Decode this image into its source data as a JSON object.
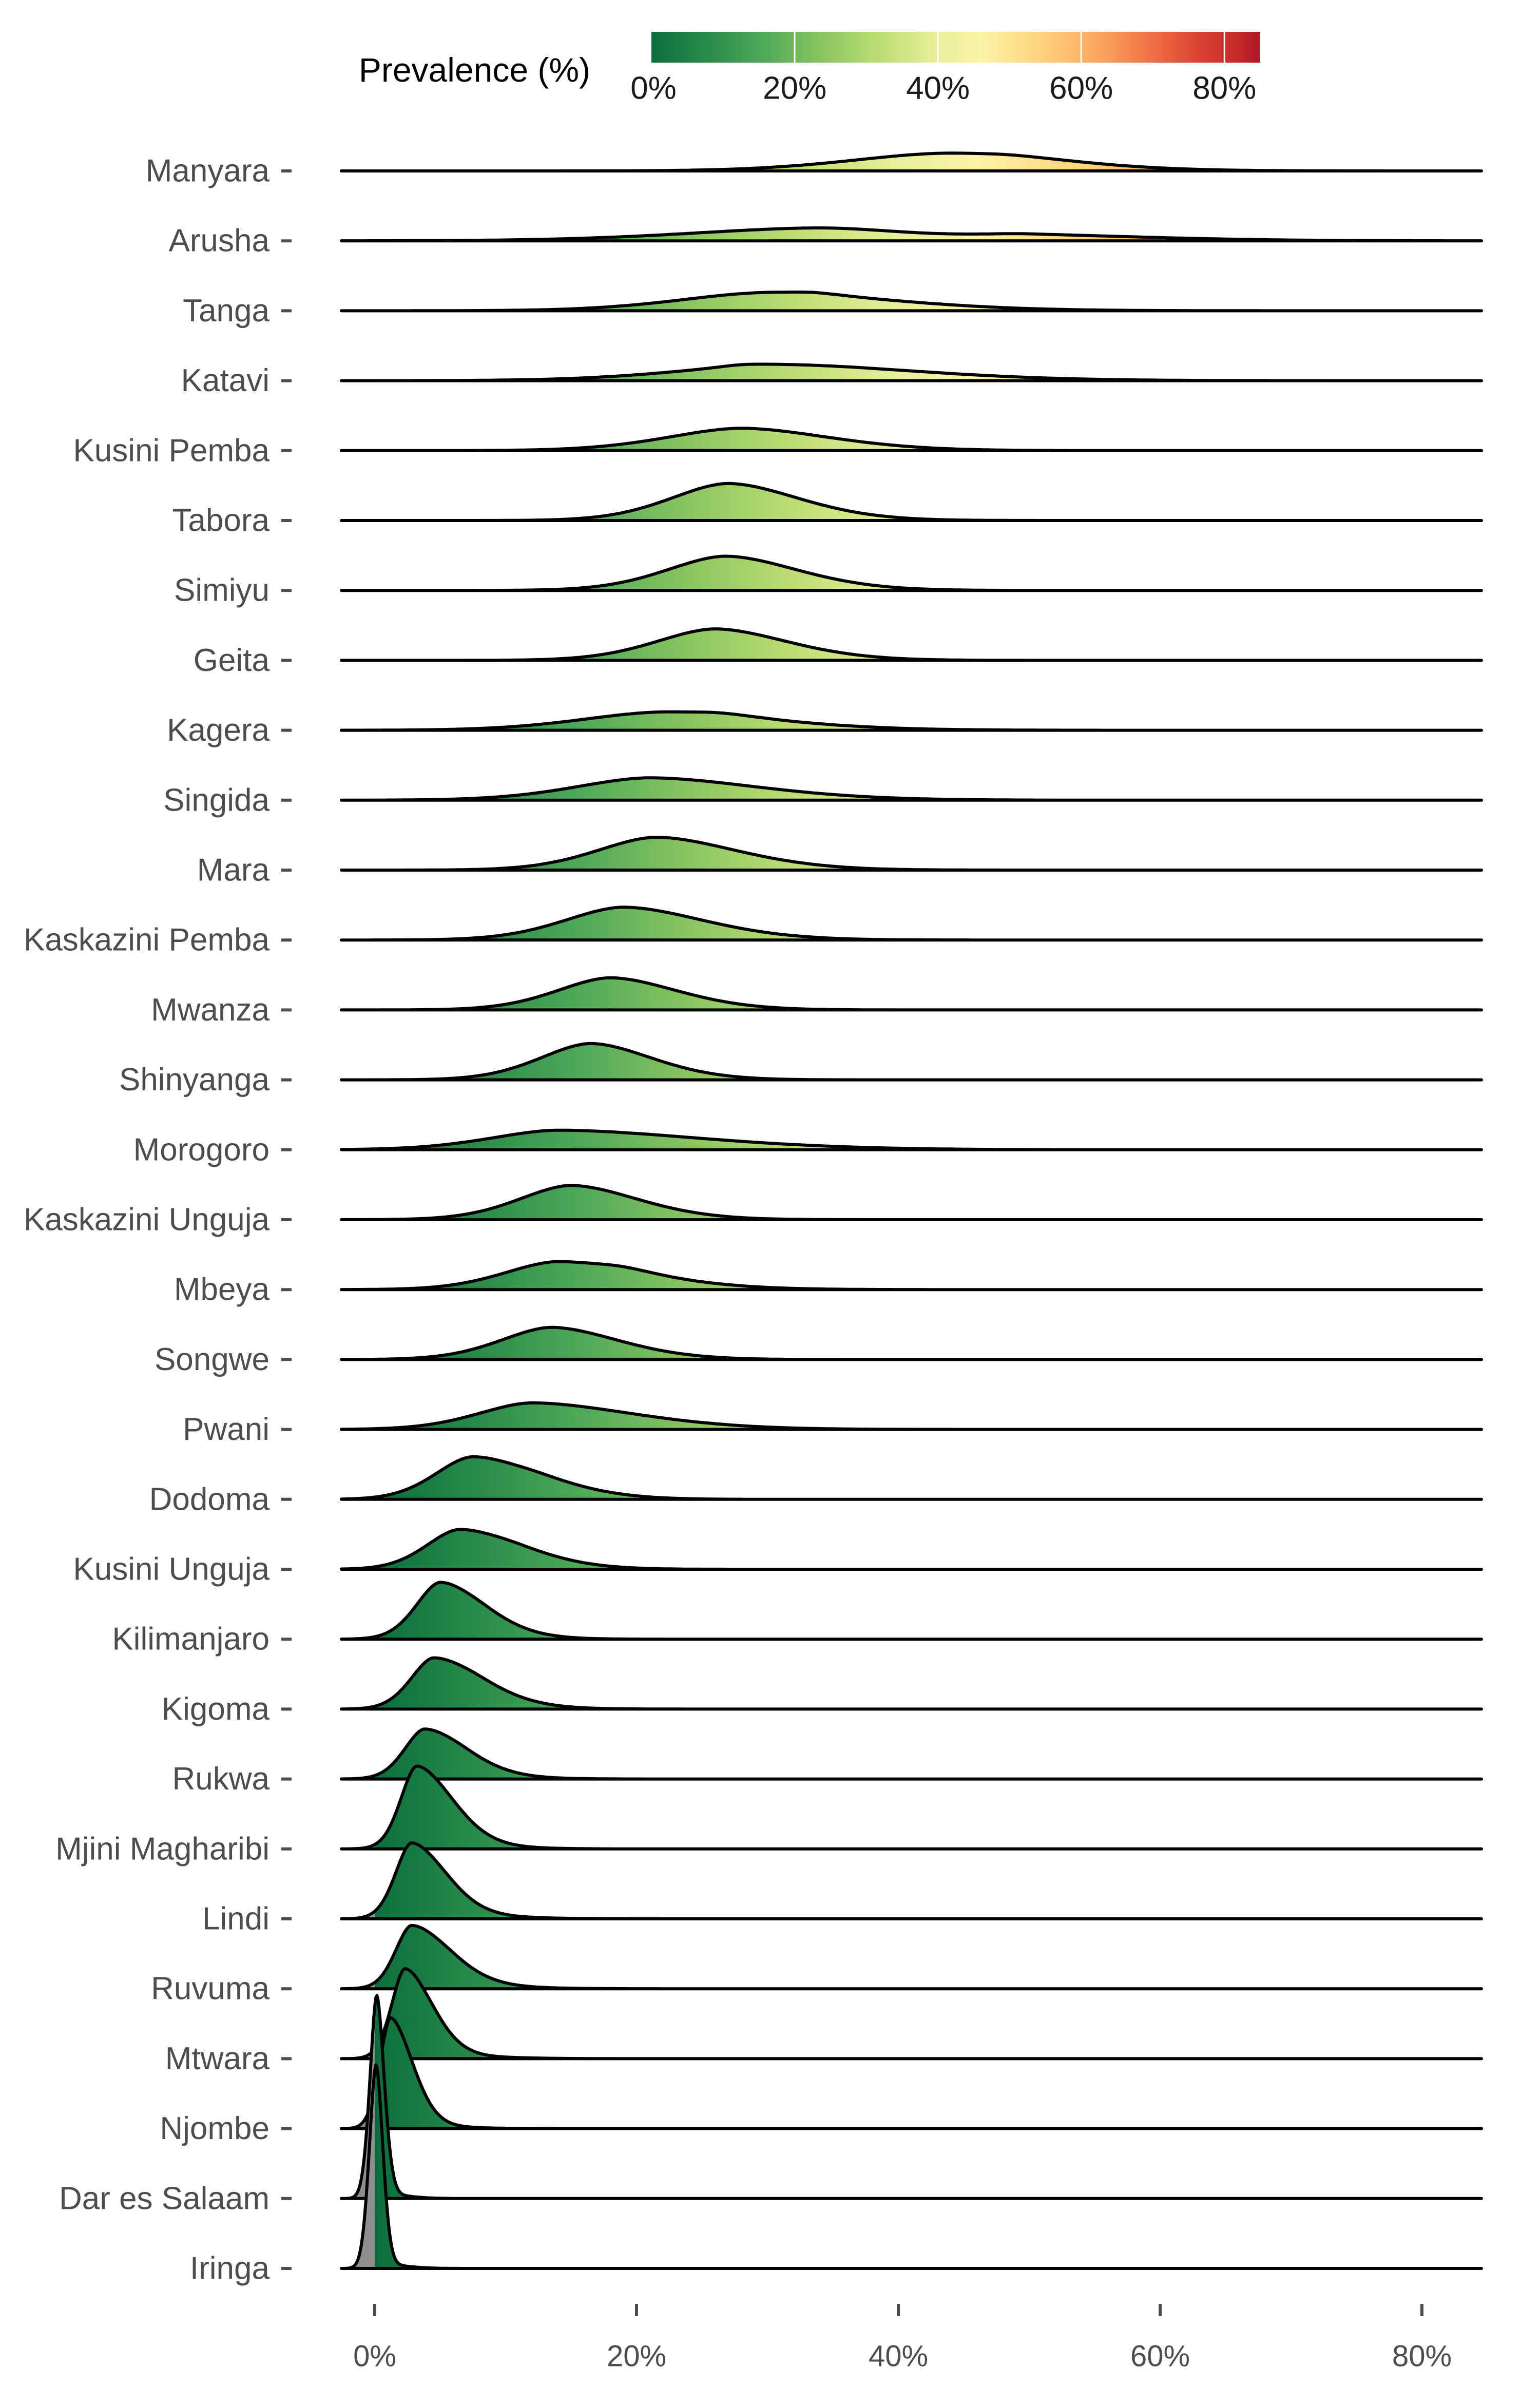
{
  "legend": {
    "title": "Prevalence (%)",
    "tick_labels": [
      "0%",
      "20%",
      "40%",
      "60%",
      "80%"
    ],
    "tick_values": [
      0,
      20,
      40,
      60,
      80
    ],
    "vmin": 0,
    "vmax": 85
  },
  "x_axis": {
    "tick_labels": [
      "0%",
      "20%",
      "40%",
      "60%",
      "80%"
    ],
    "tick_values": [
      0,
      20,
      40,
      60,
      80
    ]
  },
  "colors": {
    "background": "#ffffff",
    "outline": "#000000",
    "below_zero_gray": "#8f8f8f",
    "region_label_text": "#4d4d4d",
    "axis_text": "#4d4d4d",
    "tick_mark": "#4d4d4d",
    "legend_text": "#1a1a1a",
    "legend_title_text": "#000000",
    "ramp": [
      [
        0,
        "#0c6e3d"
      ],
      [
        8,
        "#2a8c4a"
      ],
      [
        16,
        "#50aa59"
      ],
      [
        24,
        "#8ac560"
      ],
      [
        32,
        "#bdde74"
      ],
      [
        40,
        "#e8f09b"
      ],
      [
        46,
        "#fbf3a7"
      ],
      [
        52,
        "#fddd87"
      ],
      [
        58,
        "#fdc06e"
      ],
      [
        64,
        "#f99c58"
      ],
      [
        70,
        "#ef6e45"
      ],
      [
        76,
        "#dc4633"
      ],
      [
        82,
        "#c42a28"
      ],
      [
        86,
        "#ab1728"
      ]
    ]
  },
  "chart_data": {
    "type": "ridgeline",
    "title": "",
    "xlabel": "Prevalence (%)",
    "x_domain_pct": [
      -2.5,
      84.5
    ],
    "x_ticks_pct": [
      0,
      20,
      40,
      60,
      80
    ],
    "note": "Each region row is a prevalence posterior density; components are [mode_pct, spread_left_pct, spread_right_pct, peak_height_in_row_units]; fill color encodes prevalence on the 0-85% green-yellow-red ramp, gray below 0%.",
    "regions": [
      {
        "name": "Manyara",
        "components": [
          [
            43.5,
            7.0,
            8.0,
            0.25
          ],
          [
            49.0,
            2.5,
            5.0,
            0.03
          ]
        ]
      },
      {
        "name": "Arusha",
        "components": [
          [
            34.0,
            9.5,
            7.0,
            0.185
          ],
          [
            50.0,
            4.0,
            9.5,
            0.08
          ]
        ]
      },
      {
        "name": "Tanga",
        "components": [
          [
            30.0,
            6.5,
            9.0,
            0.26
          ],
          [
            33.5,
            1.6,
            2.0,
            0.025
          ]
        ]
      },
      {
        "name": "Katavi",
        "components": [
          [
            31.0,
            7.5,
            10.0,
            0.23
          ],
          [
            28.0,
            1.5,
            1.5,
            0.02
          ]
        ]
      },
      {
        "name": "Kusini Pemba",
        "components": [
          [
            28.0,
            5.5,
            6.5,
            0.32
          ]
        ]
      },
      {
        "name": "Tabora",
        "components": [
          [
            27.0,
            4.3,
            5.3,
            0.53
          ]
        ]
      },
      {
        "name": "Simiyu",
        "components": [
          [
            26.8,
            4.4,
            5.4,
            0.49
          ]
        ]
      },
      {
        "name": "Geita",
        "components": [
          [
            26.0,
            4.4,
            5.4,
            0.45
          ]
        ]
      },
      {
        "name": "Kagera",
        "components": [
          [
            22.0,
            6.0,
            8.0,
            0.26
          ],
          [
            26.5,
            1.8,
            2.5,
            0.03
          ]
        ]
      },
      {
        "name": "Singida",
        "components": [
          [
            21.0,
            5.5,
            8.0,
            0.32
          ]
        ]
      },
      {
        "name": "Mara",
        "components": [
          [
            21.5,
            4.4,
            6.0,
            0.47
          ]
        ]
      },
      {
        "name": "Kaskazini Pemba",
        "components": [
          [
            19.0,
            4.4,
            6.0,
            0.47
          ]
        ]
      },
      {
        "name": "Mwanza",
        "components": [
          [
            18.0,
            4.0,
            5.0,
            0.46
          ]
        ]
      },
      {
        "name": "Shinyanga",
        "components": [
          [
            16.5,
            3.8,
            4.6,
            0.52
          ]
        ]
      },
      {
        "name": "Morogoro",
        "components": [
          [
            14.0,
            5.0,
            10.5,
            0.28
          ]
        ]
      },
      {
        "name": "Kaskazini Unguja",
        "components": [
          [
            15.0,
            3.9,
            5.0,
            0.49
          ]
        ]
      },
      {
        "name": "Mbeya",
        "components": [
          [
            14.0,
            4.0,
            6.5,
            0.4
          ],
          [
            19.0,
            1.6,
            2.2,
            0.035
          ]
        ]
      },
      {
        "name": "Songwe",
        "components": [
          [
            13.5,
            3.8,
            5.0,
            0.46
          ]
        ]
      },
      {
        "name": "Pwani",
        "components": [
          [
            12.0,
            4.0,
            7.5,
            0.38
          ]
        ]
      },
      {
        "name": "Dodoma",
        "components": [
          [
            7.5,
            2.8,
            5.0,
            0.61
          ],
          [
            13.0,
            1.5,
            4.0,
            0.02
          ]
        ]
      },
      {
        "name": "Kusini Unguja",
        "components": [
          [
            6.5,
            2.5,
            4.5,
            0.57
          ],
          [
            11.0,
            1.5,
            4.0,
            0.02
          ]
        ]
      },
      {
        "name": "Kilimanjaro",
        "components": [
          [
            5.0,
            1.8,
            3.2,
            0.81
          ],
          [
            8.5,
            1.5,
            4.0,
            0.03
          ]
        ]
      },
      {
        "name": "Kigoma",
        "components": [
          [
            4.5,
            1.7,
            3.5,
            0.73
          ],
          [
            8.0,
            1.5,
            4.5,
            0.035
          ]
        ]
      },
      {
        "name": "Rukwa",
        "components": [
          [
            3.8,
            1.5,
            3.0,
            0.71
          ],
          [
            7.0,
            1.5,
            4.0,
            0.035
          ]
        ]
      },
      {
        "name": "Mjini Magharibi",
        "components": [
          [
            3.2,
            1.2,
            2.6,
            1.18
          ],
          [
            6.5,
            1.5,
            4.0,
            0.035
          ]
        ]
      },
      {
        "name": "Lindi",
        "components": [
          [
            2.8,
            1.2,
            2.5,
            1.08
          ],
          [
            6.0,
            1.5,
            4.5,
            0.04
          ]
        ]
      },
      {
        "name": "Ruvuma",
        "components": [
          [
            2.8,
            1.2,
            2.8,
            0.9
          ],
          [
            6.0,
            1.5,
            4.5,
            0.04
          ]
        ]
      },
      {
        "name": "Mtwara",
        "components": [
          [
            2.3,
            1.0,
            2.0,
            1.28
          ],
          [
            5.0,
            1.3,
            4.0,
            0.04
          ]
        ]
      },
      {
        "name": "Njombe",
        "components": [
          [
            1.2,
            0.8,
            1.6,
            1.58
          ],
          [
            3.5,
            1.0,
            3.0,
            0.035
          ]
        ]
      },
      {
        "name": "Dar es Salaam",
        "components": [
          [
            0.15,
            0.5,
            0.55,
            2.9
          ],
          [
            1.2,
            0.5,
            1.5,
            0.05
          ]
        ]
      },
      {
        "name": "Iringa",
        "components": [
          [
            0.1,
            0.5,
            0.5,
            2.9
          ],
          [
            1.0,
            0.5,
            1.5,
            0.05
          ]
        ]
      }
    ]
  }
}
